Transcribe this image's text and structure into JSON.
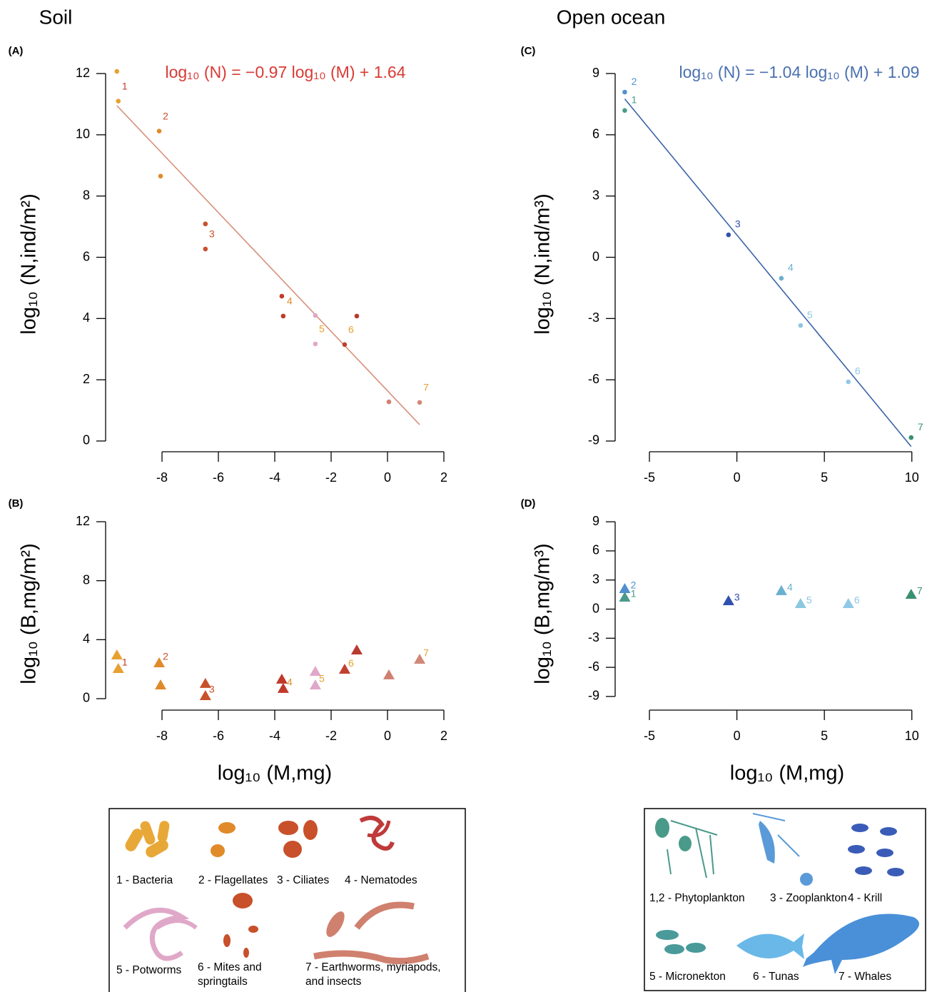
{
  "titles": {
    "soil": "Soil",
    "ocean": "Open ocean"
  },
  "chart_data": [
    {
      "type": "scatter",
      "marker": "circle",
      "panel_label": "(A)",
      "equation": "log₁₀ (N) = −0.97 log₁₀ (M) + 1.64",
      "equation_color": "#d83a34",
      "fit": {
        "slope": -0.97,
        "intercept": 1.64,
        "color": "#d8907a"
      },
      "y_label": "log₁₀ (N,ind/m²)",
      "x": [
        -9.6,
        -9.55,
        -8.1,
        -8.05,
        -6.46,
        -6.46,
        -3.75,
        -3.7,
        -2.56,
        -2.56,
        -1.52,
        -1.09,
        0.05,
        1.14
      ],
      "y": [
        12.07,
        11.1,
        10.12,
        8.65,
        7.09,
        6.27,
        4.73,
        4.08,
        4.1,
        3.17,
        3.15,
        4.08,
        1.28,
        1.26
      ],
      "colors": [
        "#e8a030",
        "#e8a030",
        "#e08a2a",
        "#e08a2a",
        "#c8502a",
        "#c8502a",
        "#c03a2a",
        "#c03a2a",
        "#e0a8c8",
        "#e0a8c8",
        "#c04030",
        "#b83a30",
        "#d08070",
        "#d08878"
      ],
      "point_labels": [
        null,
        "1",
        "2",
        null,
        null,
        "3",
        null,
        "4",
        null,
        "5",
        "6",
        null,
        null,
        "7"
      ],
      "label_colors": [
        null,
        "#c83a2a",
        "#c8502a",
        null,
        null,
        "#c8502a",
        null,
        "#e08a2a",
        null,
        "#e8a030",
        "#e8a030",
        null,
        null,
        "#e8a030"
      ],
      "xlim": [
        -10,
        2
      ],
      "ylim": [
        -0.5,
        12.5
      ],
      "xticks": [
        -8,
        -6,
        -4,
        -2,
        0,
        2
      ],
      "yticks": [
        0,
        2,
        4,
        6,
        8,
        10,
        12
      ]
    },
    {
      "type": "scatter",
      "marker": "triangle",
      "panel_label": "(B)",
      "y_label": "log₁₀ (B,mg/m²)",
      "x_label": "log₁₀ (M,mg)",
      "x": [
        -9.6,
        -9.55,
        -8.1,
        -8.05,
        -6.46,
        -6.46,
        -3.75,
        -3.7,
        -2.56,
        -2.56,
        -1.52,
        -1.09,
        0.05,
        1.14
      ],
      "y": [
        2.95,
        2.03,
        2.42,
        0.92,
        1.02,
        0.19,
        1.31,
        0.68,
        1.84,
        0.92,
        1.98,
        3.29,
        1.6,
        2.66
      ],
      "colors": [
        "#e8a030",
        "#e8a030",
        "#e08a2a",
        "#e08a2a",
        "#c8502a",
        "#c8502a",
        "#c03a2a",
        "#c03a2a",
        "#e0a8c8",
        "#e0a8c8",
        "#c04030",
        "#b83a30",
        "#d08070",
        "#d08878"
      ],
      "point_labels": [
        null,
        "1",
        "2",
        null,
        null,
        "3",
        null,
        "4",
        null,
        "5",
        "6",
        null,
        null,
        "7"
      ],
      "label_colors": [
        null,
        "#c83a2a",
        "#c8502a",
        null,
        null,
        "#c8502a",
        null,
        "#e08a2a",
        null,
        "#e8a030",
        "#e8a030",
        null,
        null,
        "#e8a030"
      ],
      "xlim": [
        -10,
        2
      ],
      "ylim": [
        -0.5,
        12.5
      ],
      "xticks": [
        -8,
        -6,
        -4,
        -2,
        0,
        2
      ],
      "yticks": [
        0,
        4,
        8,
        12
      ]
    },
    {
      "type": "scatter",
      "marker": "circle",
      "panel_label": "(C)",
      "equation": "log₁₀ (N) = −1.04 log₁₀ (M) + 1.09",
      "equation_color": "#4a70b0",
      "fit": {
        "slope": -1.04,
        "intercept": 1.09,
        "color": "#3a64a8"
      },
      "y_label": "log₁₀ (N,ind/m³)",
      "x": [
        -6.41,
        -6.41,
        -0.48,
        2.54,
        3.64,
        6.37,
        9.96
      ],
      "y": [
        8.09,
        7.19,
        1.1,
        -1.03,
        -3.34,
        -6.1,
        -8.83
      ],
      "colors": [
        "#5090d0",
        "#4a9a8a",
        "#3050b0",
        "#6ab0d0",
        "#8cc8e0",
        "#90c8e8",
        "#3a9070"
      ],
      "point_labels": [
        "2",
        "1",
        "3",
        "4",
        "5",
        "6",
        "7"
      ],
      "label_colors": [
        "#5090d0",
        "#4a9a8a",
        "#3050b0",
        "#6ab0d0",
        "#8cc8e0",
        "#90c8e8",
        "#3a9070"
      ],
      "xlim": [
        -7,
        10.5
      ],
      "ylim": [
        -9.7,
        9.7
      ],
      "xticks": [
        -5,
        0,
        5,
        10
      ],
      "yticks": [
        -9,
        -6,
        -3,
        0,
        3,
        6,
        9
      ]
    },
    {
      "type": "scatter",
      "marker": "triangle",
      "panel_label": "(D)",
      "y_label": "log₁₀ (B,mg/m³)",
      "x_label": "log₁₀ (M,mg)",
      "x": [
        -6.41,
        -6.41,
        -0.48,
        2.54,
        3.64,
        6.37,
        9.96
      ],
      "y": [
        2.1,
        1.21,
        0.85,
        1.88,
        0.55,
        0.55,
        1.51
      ],
      "colors": [
        "#5090d0",
        "#4a9a8a",
        "#3050b0",
        "#6ab0d0",
        "#8cc8e0",
        "#90c8e8",
        "#3a9070"
      ],
      "point_labels": [
        "2",
        "1",
        "3",
        "4",
        "5",
        "6",
        "7"
      ],
      "label_colors": [
        "#5090d0",
        "#4a9a8a",
        "#3050b0",
        "#6ab0d0",
        "#8cc8e0",
        "#90c8e8",
        "#3a9070"
      ],
      "xlim": [
        -7,
        10.5
      ],
      "ylim": [
        -9.7,
        9.7
      ],
      "xticks": [
        -5,
        0,
        5,
        10
      ],
      "yticks": [
        -9,
        -6,
        -3,
        0,
        3,
        6,
        9
      ]
    }
  ],
  "legends": {
    "soil": [
      [
        "1 - Bacteria"
      ],
      [
        "2 - Flagellates"
      ],
      [
        "3 - Ciliates"
      ],
      [
        "4 - Nematodes"
      ],
      [
        "5 - Potworms"
      ],
      [
        "6 - Mites and",
        "springtails"
      ],
      [
        "7 - Earthworms, myriapods,",
        "and insects"
      ]
    ],
    "ocean": [
      [
        "1,2 - Phytoplankton"
      ],
      [
        "3 - Zooplankton"
      ],
      [
        "4 - Krill"
      ],
      [
        "5 - Micronekton"
      ],
      [
        "6 - Tunas"
      ],
      [
        "7 - Whales"
      ]
    ]
  }
}
